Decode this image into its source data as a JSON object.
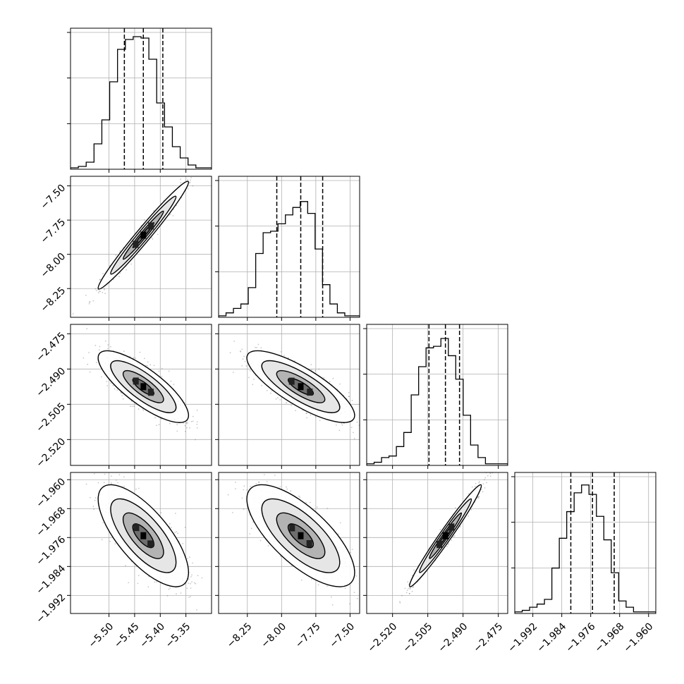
{
  "chart_data": {
    "type": "corner",
    "grid": true,
    "n_parameters": 4,
    "parameter_ranges": [
      [
        -5.575,
        -5.3
      ],
      [
        -8.46,
        -7.43
      ],
      [
        -2.531,
        -2.471
      ],
      [
        -1.997,
        -1.958
      ]
    ],
    "tick_values": [
      [
        -5.5,
        -5.45,
        -5.4,
        -5.35
      ],
      [
        -8.25,
        -8.0,
        -7.75,
        -7.5
      ],
      [
        -2.52,
        -2.505,
        -2.49,
        -2.475
      ],
      [
        -1.992,
        -1.984,
        -1.976,
        -1.968,
        -1.96
      ]
    ],
    "tick_labels": [
      [
        "−5.50",
        "−5.45",
        "−5.40",
        "−5.35"
      ],
      [
        "−8.25",
        "−8.00",
        "−7.75",
        "−7.50"
      ],
      [
        "−2.520",
        "−2.505",
        "−2.490",
        "−2.475"
      ],
      [
        "−1.992",
        "−1.984",
        "−1.976",
        "−1.968",
        "−1.960"
      ]
    ],
    "quantiles": [
      [
        -5.47,
        -5.433,
        -5.395
      ],
      [
        -8.035,
        -7.86,
        -7.7
      ],
      [
        -2.5045,
        -2.4975,
        -2.4915
      ],
      [
        -1.9815,
        -1.9755,
        -1.9695
      ]
    ],
    "histograms": [
      {
        "values": [
          1,
          2,
          5,
          18,
          35,
          62,
          85,
          92,
          94,
          93,
          78,
          47,
          30,
          16,
          8,
          3,
          1,
          1
        ],
        "ymax": 100
      },
      {
        "values": [
          1,
          3,
          6,
          9,
          20,
          43,
          57,
          58,
          63,
          69,
          74,
          78,
          70,
          46,
          22,
          9,
          3,
          1,
          1
        ],
        "ymax": 95
      },
      {
        "values": [
          1,
          2,
          5,
          6,
          12,
          21,
          45,
          63,
          75,
          76,
          81,
          70,
          55,
          32,
          13,
          5,
          1,
          1,
          1
        ],
        "ymax": 90
      },
      {
        "values": [
          1,
          2,
          4,
          6,
          9,
          29,
          48,
          65,
          77,
          82,
          76,
          62,
          47,
          26,
          8,
          4,
          1,
          1,
          1
        ],
        "ymax": 90
      }
    ],
    "correlations": {
      "1-0": 0.98,
      "2-0": -0.8,
      "2-1": -0.8,
      "3-0": -0.72,
      "3-1": -0.72,
      "3-2": 0.98
    },
    "colors": {
      "line": "#000000",
      "grid": "#b0b0b0",
      "scatter": "#606060"
    }
  }
}
